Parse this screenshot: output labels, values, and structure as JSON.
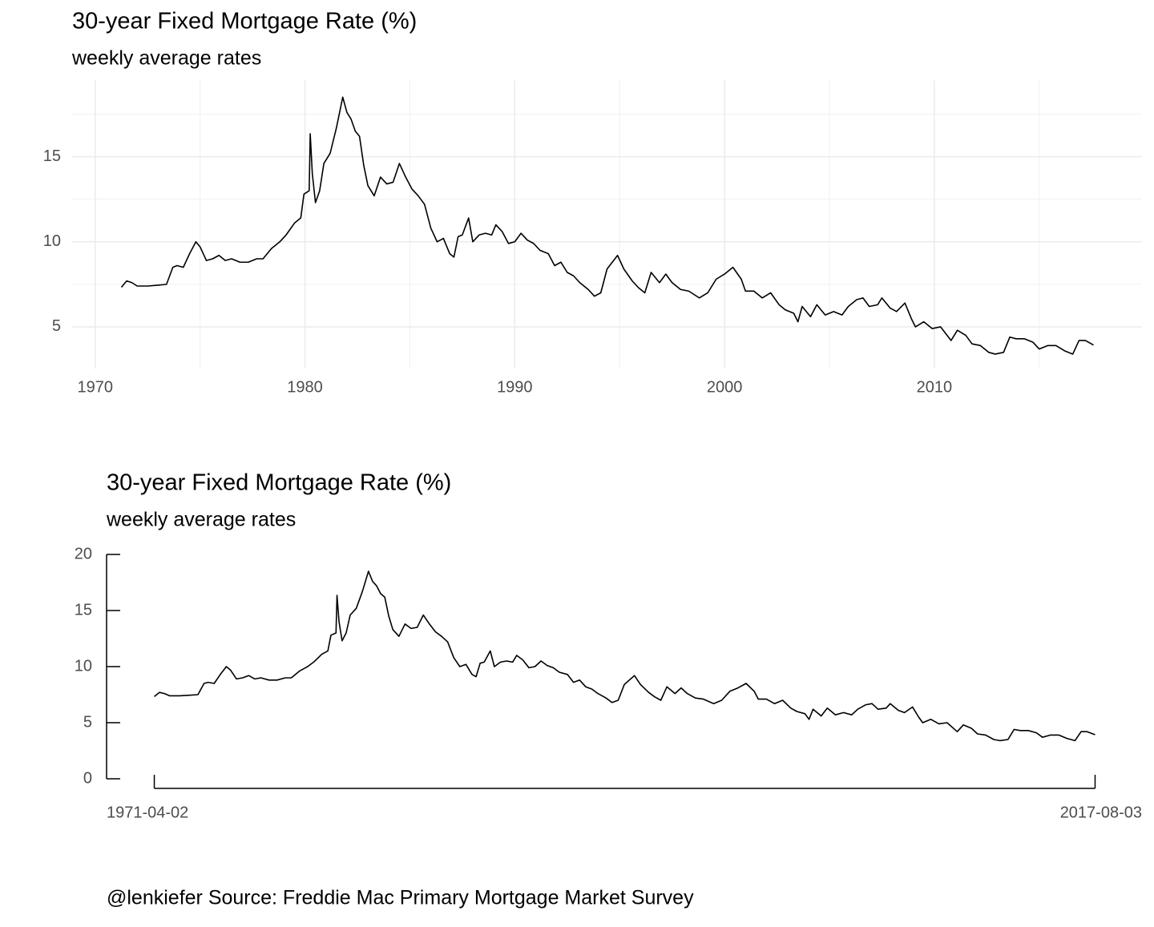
{
  "chart_data": [
    {
      "type": "line",
      "title": "30-year Fixed Mortgage Rate (%)",
      "subtitle": "weekly average rates",
      "x": [
        1971.25,
        1971.5,
        1971.75,
        1972.0,
        1972.5,
        1973.0,
        1973.4,
        1973.7,
        1973.9,
        1974.2,
        1974.5,
        1974.8,
        1975.0,
        1975.3,
        1975.6,
        1975.9,
        1976.2,
        1976.5,
        1976.9,
        1977.3,
        1977.7,
        1978.0,
        1978.4,
        1978.8,
        1979.1,
        1979.5,
        1979.8,
        1979.95,
        1980.2,
        1980.25,
        1980.35,
        1980.5,
        1980.7,
        1980.9,
        1981.2,
        1981.5,
        1981.8,
        1982.0,
        1982.2,
        1982.4,
        1982.6,
        1982.8,
        1983.0,
        1983.3,
        1983.6,
        1983.9,
        1984.2,
        1984.5,
        1984.8,
        1985.1,
        1985.4,
        1985.7,
        1986.0,
        1986.3,
        1986.6,
        1986.9,
        1987.1,
        1987.3,
        1987.5,
        1987.8,
        1988.0,
        1988.3,
        1988.6,
        1988.9,
        1989.1,
        1989.4,
        1989.7,
        1990.0,
        1990.3,
        1990.6,
        1990.9,
        1991.2,
        1991.6,
        1991.9,
        1992.2,
        1992.5,
        1992.8,
        1993.1,
        1993.5,
        1993.8,
        1994.1,
        1994.4,
        1994.9,
        1995.2,
        1995.6,
        1995.9,
        1996.2,
        1996.5,
        1996.9,
        1997.2,
        1997.5,
        1997.9,
        1998.3,
        1998.8,
        1999.2,
        1999.6,
        2000.0,
        2000.4,
        2000.8,
        2001.0,
        2001.4,
        2001.8,
        2002.2,
        2002.6,
        2002.9,
        2003.3,
        2003.5,
        2003.7,
        2004.1,
        2004.4,
        2004.8,
        2005.2,
        2005.6,
        2005.9,
        2006.3,
        2006.6,
        2006.9,
        2007.3,
        2007.5,
        2007.9,
        2008.2,
        2008.6,
        2008.9,
        2009.1,
        2009.5,
        2009.9,
        2010.3,
        2010.8,
        2011.1,
        2011.5,
        2011.8,
        2012.2,
        2012.6,
        2012.9,
        2013.3,
        2013.6,
        2013.9,
        2014.3,
        2014.7,
        2015.0,
        2015.4,
        2015.8,
        2016.2,
        2016.6,
        2016.9,
        2017.2,
        2017.59
      ],
      "values": [
        7.33,
        7.7,
        7.6,
        7.4,
        7.4,
        7.45,
        7.5,
        8.5,
        8.6,
        8.5,
        9.3,
        10.0,
        9.7,
        8.9,
        9.0,
        9.2,
        8.9,
        9.0,
        8.8,
        8.8,
        9.0,
        9.0,
        9.6,
        10.0,
        10.4,
        11.1,
        11.4,
        12.8,
        13.0,
        16.35,
        14.0,
        12.3,
        13.0,
        14.6,
        15.2,
        16.7,
        18.5,
        17.6,
        17.2,
        16.5,
        16.2,
        14.5,
        13.3,
        12.7,
        13.8,
        13.4,
        13.5,
        14.6,
        13.8,
        13.1,
        12.7,
        12.2,
        10.8,
        10.0,
        10.2,
        9.3,
        9.1,
        10.3,
        10.4,
        11.4,
        10.0,
        10.4,
        10.5,
        10.4,
        11.0,
        10.6,
        9.9,
        10.0,
        10.5,
        10.1,
        9.9,
        9.5,
        9.3,
        8.6,
        8.8,
        8.2,
        8.0,
        7.6,
        7.2,
        6.8,
        7.0,
        8.4,
        9.2,
        8.4,
        7.7,
        7.3,
        7.0,
        8.2,
        7.6,
        8.1,
        7.6,
        7.2,
        7.1,
        6.7,
        7.0,
        7.8,
        8.1,
        8.5,
        7.8,
        7.1,
        7.1,
        6.7,
        7.0,
        6.3,
        6.0,
        5.8,
        5.3,
        6.2,
        5.6,
        6.3,
        5.7,
        5.9,
        5.7,
        6.2,
        6.6,
        6.7,
        6.2,
        6.3,
        6.7,
        6.1,
        5.9,
        6.4,
        5.5,
        5.0,
        5.3,
        4.9,
        5.0,
        4.2,
        4.8,
        4.5,
        4.0,
        3.9,
        3.5,
        3.4,
        3.5,
        4.4,
        4.3,
        4.3,
        4.1,
        3.7,
        3.9,
        3.9,
        3.6,
        3.4,
        4.2,
        4.2,
        3.93
      ],
      "color": "#000000",
      "xlim": [
        1968.9,
        2019.9
      ],
      "xticks": [
        1970,
        1980,
        1990,
        2000,
        2010
      ],
      "ylim": [
        2.55,
        19.5
      ],
      "yticks": [
        5,
        10,
        15
      ],
      "grid": true,
      "x_minor_ticks": [
        1975,
        1985,
        1995,
        2005,
        2015
      ],
      "y_minor_ticks": [
        7.5,
        12.5,
        17.5
      ]
    },
    {
      "type": "line",
      "title": "30-year Fixed Mortgage Rate (%)",
      "subtitle": "weekly average rates",
      "caption": "@lenkiefer Source: Freddie Mac Primary Mortgage Market Survey",
      "x": [
        1971.25,
        1971.5,
        1971.75,
        1972.0,
        1972.5,
        1973.0,
        1973.4,
        1973.7,
        1973.9,
        1974.2,
        1974.5,
        1974.8,
        1975.0,
        1975.3,
        1975.6,
        1975.9,
        1976.2,
        1976.5,
        1976.9,
        1977.3,
        1977.7,
        1978.0,
        1978.4,
        1978.8,
        1979.1,
        1979.5,
        1979.8,
        1979.95,
        1980.2,
        1980.25,
        1980.35,
        1980.5,
        1980.7,
        1980.9,
        1981.2,
        1981.5,
        1981.8,
        1982.0,
        1982.2,
        1982.4,
        1982.6,
        1982.8,
        1983.0,
        1983.3,
        1983.6,
        1983.9,
        1984.2,
        1984.5,
        1984.8,
        1985.1,
        1985.4,
        1985.7,
        1986.0,
        1986.3,
        1986.6,
        1986.9,
        1987.1,
        1987.3,
        1987.5,
        1987.8,
        1988.0,
        1988.3,
        1988.6,
        1988.9,
        1989.1,
        1989.4,
        1989.7,
        1990.0,
        1990.3,
        1990.6,
        1990.9,
        1991.2,
        1991.6,
        1991.9,
        1992.2,
        1992.5,
        1992.8,
        1993.1,
        1993.5,
        1993.8,
        1994.1,
        1994.4,
        1994.9,
        1995.2,
        1995.6,
        1995.9,
        1996.2,
        1996.5,
        1996.9,
        1997.2,
        1997.5,
        1997.9,
        1998.3,
        1998.8,
        1999.2,
        1999.6,
        2000.0,
        2000.4,
        2000.8,
        2001.0,
        2001.4,
        2001.8,
        2002.2,
        2002.6,
        2002.9,
        2003.3,
        2003.5,
        2003.7,
        2004.1,
        2004.4,
        2004.8,
        2005.2,
        2005.6,
        2005.9,
        2006.3,
        2006.6,
        2006.9,
        2007.3,
        2007.5,
        2007.9,
        2008.2,
        2008.6,
        2008.9,
        2009.1,
        2009.5,
        2009.9,
        2010.3,
        2010.8,
        2011.1,
        2011.5,
        2011.8,
        2012.2,
        2012.6,
        2012.9,
        2013.3,
        2013.6,
        2013.9,
        2014.3,
        2014.7,
        2015.0,
        2015.4,
        2015.8,
        2016.2,
        2016.6,
        2016.9,
        2017.2,
        2017.59
      ],
      "values": [
        7.33,
        7.7,
        7.6,
        7.4,
        7.4,
        7.45,
        7.5,
        8.5,
        8.6,
        8.5,
        9.3,
        10.0,
        9.7,
        8.9,
        9.0,
        9.2,
        8.9,
        9.0,
        8.8,
        8.8,
        9.0,
        9.0,
        9.6,
        10.0,
        10.4,
        11.1,
        11.4,
        12.8,
        13.0,
        16.35,
        14.0,
        12.3,
        13.0,
        14.6,
        15.2,
        16.7,
        18.5,
        17.6,
        17.2,
        16.5,
        16.2,
        14.5,
        13.3,
        12.7,
        13.8,
        13.4,
        13.5,
        14.6,
        13.8,
        13.1,
        12.7,
        12.2,
        10.8,
        10.0,
        10.2,
        9.3,
        9.1,
        10.3,
        10.4,
        11.4,
        10.0,
        10.4,
        10.5,
        10.4,
        11.0,
        10.6,
        9.9,
        10.0,
        10.5,
        10.1,
        9.9,
        9.5,
        9.3,
        8.6,
        8.8,
        8.2,
        8.0,
        7.6,
        7.2,
        6.8,
        7.0,
        8.4,
        9.2,
        8.4,
        7.7,
        7.3,
        7.0,
        8.2,
        7.6,
        8.1,
        7.6,
        7.2,
        7.1,
        6.7,
        7.0,
        7.8,
        8.1,
        8.5,
        7.8,
        7.1,
        7.1,
        6.7,
        7.0,
        6.3,
        6.0,
        5.8,
        5.3,
        6.2,
        5.6,
        6.3,
        5.7,
        5.9,
        5.7,
        6.2,
        6.6,
        6.7,
        6.2,
        6.3,
        6.7,
        6.1,
        5.9,
        6.4,
        5.5,
        5.0,
        5.3,
        4.9,
        5.0,
        4.2,
        4.8,
        4.5,
        4.0,
        3.9,
        3.5,
        3.4,
        3.5,
        4.4,
        4.3,
        4.3,
        4.1,
        3.7,
        3.9,
        3.9,
        3.6,
        3.4,
        4.2,
        4.2,
        3.93
      ],
      "color": "#000000",
      "xlim": [
        1968.9,
        2019.9
      ],
      "xticks": [
        {
          "value": 1971.25,
          "label": "1971-04-02"
        },
        {
          "value": 2017.59,
          "label": "2017-08-03"
        }
      ],
      "ylim": [
        0,
        20
      ],
      "yticks": [
        0,
        5,
        10,
        15,
        20
      ],
      "grid": false
    }
  ]
}
